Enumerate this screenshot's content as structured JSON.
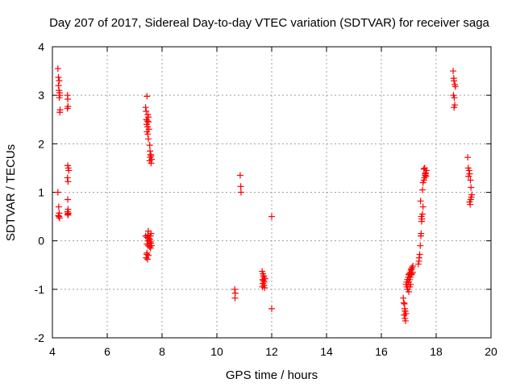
{
  "chart_data": {
    "type": "scatter",
    "title": "Day 207 of 2017, Sidereal Day-to-day VTEC variation (SDTVAR) for receiver saga",
    "xlabel": "GPS time / hours",
    "ylabel": "SDTVAR / TECUs",
    "xlim": [
      4,
      20
    ],
    "ylim": [
      -2,
      4
    ],
    "xticks": [
      "4",
      "6",
      "8",
      "10",
      "12",
      "14",
      "16",
      "18",
      "20"
    ],
    "yticks": [
      "-2",
      "-1",
      "0",
      "1",
      "2",
      "3",
      "4"
    ],
    "grid": true,
    "marker": "+",
    "color": "#ff0000",
    "series": [
      {
        "name": "SDTVAR",
        "x": [
          4.2,
          4.22,
          4.25,
          4.22,
          4.24,
          4.26,
          4.27,
          4.25,
          4.28,
          4.27,
          4.2,
          4.23,
          4.25,
          4.22,
          4.24,
          4.26,
          4.55,
          4.56,
          4.57,
          4.55,
          4.56,
          4.58,
          4.6,
          4.55,
          4.57,
          4.56,
          4.57,
          4.55,
          4.58,
          4.56,
          4.57,
          7.4,
          7.42,
          7.45,
          7.48,
          7.5,
          7.43,
          7.46,
          7.5,
          7.44,
          7.47,
          7.52,
          7.45,
          7.48,
          7.5,
          7.55,
          7.56,
          7.58,
          7.6,
          7.57,
          7.62,
          7.55,
          7.6,
          7.4,
          7.45,
          7.5,
          7.48,
          7.52,
          7.55,
          7.57,
          7.6,
          7.45,
          7.5,
          7.55,
          7.58,
          7.62,
          7.48,
          7.53,
          7.58,
          7.6,
          7.45,
          7.5,
          7.42,
          7.47,
          7.44,
          10.65,
          10.67,
          10.66,
          10.85,
          10.87,
          10.88,
          11.65,
          11.68,
          11.7,
          11.72,
          11.75,
          11.67,
          11.7,
          11.73,
          11.68,
          11.72,
          11.66,
          11.74,
          12.0,
          12.0,
          16.8,
          16.82,
          16.85,
          16.87,
          16.9,
          16.83,
          16.86,
          16.88,
          16.84,
          16.87,
          16.9,
          16.92,
          16.95,
          16.98,
          17.0,
          17.02,
          17.05,
          17.08,
          17.1,
          17.12,
          17.15,
          16.93,
          16.97,
          17.0,
          17.03,
          17.06,
          17.09,
          17.11,
          17.14,
          16.96,
          17.0,
          17.04,
          17.07,
          17.35,
          17.37,
          17.38,
          17.4,
          17.42,
          17.44,
          17.45,
          17.47,
          17.48,
          17.5,
          17.52,
          17.43,
          17.46,
          17.5,
          17.52,
          17.55,
          17.57,
          17.6,
          17.62,
          17.65,
          17.55,
          17.58,
          17.6,
          17.63,
          18.62,
          18.64,
          18.65,
          18.68,
          18.7,
          18.63,
          18.66,
          18.68,
          18.65,
          19.15,
          19.17,
          19.2,
          19.22,
          19.18,
          19.25,
          19.27,
          19.3,
          19.28,
          19.26,
          19.22,
          19.24
        ],
        "y": [
          3.55,
          3.37,
          3.3,
          3.2,
          3.1,
          3.05,
          3.0,
          2.95,
          2.7,
          2.65,
          1.0,
          0.7,
          0.57,
          0.52,
          0.5,
          0.47,
          3.0,
          2.92,
          2.77,
          2.73,
          1.55,
          1.5,
          1.45,
          1.3,
          1.22,
          0.85,
          0.65,
          0.6,
          0.57,
          0.55,
          0.53,
          2.75,
          2.67,
          2.98,
          2.6,
          2.55,
          2.5,
          2.47,
          2.45,
          2.4,
          2.35,
          2.3,
          2.25,
          2.2,
          2.1,
          1.97,
          1.85,
          1.78,
          1.75,
          1.72,
          1.68,
          1.65,
          1.6,
          0.1,
          0.07,
          0.2,
          0.12,
          0.05,
          0.02,
          -0.02,
          -0.05,
          -0.07,
          -0.1,
          -0.12,
          -0.15,
          -0.1,
          0.0,
          0.05,
          0.1,
          0.15,
          -0.25,
          -0.3,
          -0.35,
          -0.38,
          -0.28,
          -1.0,
          -1.08,
          -1.18,
          1.35,
          1.12,
          1.0,
          -0.63,
          -0.68,
          -0.72,
          -0.75,
          -0.78,
          -0.8,
          -0.82,
          -0.85,
          -0.88,
          -0.92,
          -0.95,
          -0.97,
          0.5,
          -1.4,
          -1.18,
          -1.28,
          -1.4,
          -1.45,
          -1.5,
          -1.53,
          -1.6,
          -1.65,
          -1.3,
          -1.45,
          -0.9,
          -0.85,
          -0.8,
          -0.75,
          -0.7,
          -0.68,
          -0.65,
          -0.6,
          -0.58,
          -0.55,
          -0.52,
          -0.95,
          -0.9,
          -0.85,
          -0.8,
          -0.75,
          -0.7,
          -0.68,
          -0.65,
          -1.0,
          -1.05,
          -0.95,
          -0.9,
          -0.48,
          -0.42,
          -0.35,
          -0.28,
          -0.1,
          0.1,
          0.15,
          0.4,
          0.45,
          0.55,
          0.7,
          0.82,
          0.5,
          1.05,
          1.2,
          1.25,
          1.3,
          1.35,
          1.4,
          1.45,
          1.48,
          1.5,
          1.38,
          1.33,
          3.5,
          3.35,
          3.3,
          3.22,
          3.18,
          3.0,
          2.95,
          2.8,
          2.75,
          1.72,
          1.5,
          1.45,
          1.38,
          1.33,
          1.25,
          1.1,
          0.95,
          0.9,
          0.85,
          0.8,
          0.75
        ]
      }
    ]
  }
}
